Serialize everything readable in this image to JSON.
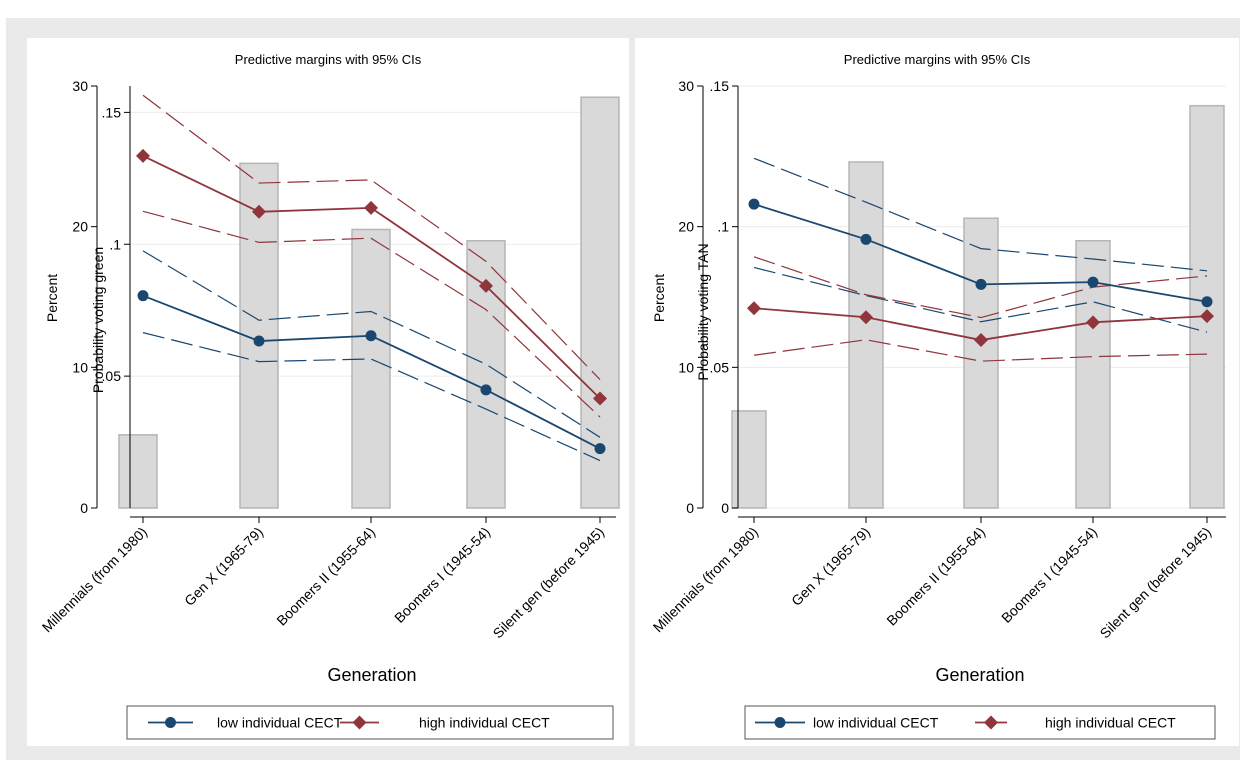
{
  "chart_data": [
    {
      "type": "line",
      "title": "Predictive margins with 95% CIs",
      "xlabel": "Generation",
      "ylabel_left": "Percent",
      "ylabel_right": "Probability voting green",
      "categories": [
        "Millennials (from 1980)",
        "Gen X (1965-79)",
        "Boomers II (1955-64)",
        "Boomers I (1945-54)",
        "Silent gen (before 1945)"
      ],
      "left_axis": {
        "ylim": [
          0,
          30
        ],
        "ticks": [
          0,
          10,
          20,
          30
        ],
        "tick_labels": [
          "0",
          "10",
          "20",
          "30"
        ]
      },
      "right_axis": {
        "ylim": [
          0,
          0.16
        ],
        "ticks": [
          0.05,
          0.1,
          0.15
        ],
        "tick_labels": [
          ".05",
          ".1",
          ".15"
        ]
      },
      "bars": {
        "name": "Percent",
        "values": [
          5.2,
          24.5,
          19.8,
          19.0,
          29.2
        ],
        "color": "#d9d9d9"
      },
      "series": [
        {
          "name": "low individual CECT",
          "values": [
            0.0805,
            0.0633,
            0.0653,
            0.0448,
            0.0225
          ],
          "ci_lower": [
            0.0665,
            0.0555,
            0.0565,
            0.0375,
            0.018
          ],
          "ci_upper": [
            0.0975,
            0.0712,
            0.0745,
            0.0545,
            0.0268
          ],
          "color": "#1a476f",
          "marker": "circle"
        },
        {
          "name": "high individual CECT",
          "values": [
            0.1335,
            0.1123,
            0.1138,
            0.0842,
            0.0415
          ],
          "ci_lower": [
            0.1125,
            0.1007,
            0.1023,
            0.0752,
            0.0345
          ],
          "ci_upper": [
            0.1565,
            0.1232,
            0.1244,
            0.0935,
            0.0487
          ],
          "color": "#90353b",
          "marker": "diamond"
        }
      ],
      "legend": {
        "position": "bottom",
        "entries": [
          "low individual CECT",
          "high individual CECT"
        ]
      },
      "grid": true
    },
    {
      "type": "line",
      "title": "Predictive margins with 95% CIs",
      "xlabel": "Generation",
      "ylabel_left": "Percent",
      "ylabel_right": "Probability voting TAN",
      "categories": [
        "Millennials (from 1980)",
        "Gen X (1965-79)",
        "Boomers II (1955-64)",
        "Boomers I (1945-54)",
        "Silent gen (before 1945)"
      ],
      "left_axis": {
        "ylim": [
          0,
          30
        ],
        "ticks": [
          0,
          10,
          20,
          30
        ],
        "tick_labels": [
          "0",
          "10",
          "20",
          "30"
        ]
      },
      "right_axis": {
        "ylim": [
          0,
          0.15
        ],
        "ticks": [
          0,
          0.05,
          0.1,
          0.15
        ],
        "tick_labels": [
          "0",
          ".05",
          ".1",
          ".15"
        ]
      },
      "bars": {
        "name": "Percent",
        "values": [
          6.9,
          24.6,
          20.6,
          19.0,
          28.6
        ],
        "color": "#d9d9d9"
      },
      "series": [
        {
          "name": "low individual CECT",
          "values": [
            0.108,
            0.0955,
            0.0795,
            0.0803,
            0.0733
          ],
          "ci_lower": [
            0.0855,
            0.0755,
            0.0662,
            0.0733,
            0.0625
          ],
          "ci_upper": [
            0.1243,
            0.1087,
            0.0922,
            0.0885,
            0.0843
          ],
          "color": "#1a476f",
          "marker": "circle"
        },
        {
          "name": "high individual CECT",
          "values": [
            0.071,
            0.0678,
            0.0597,
            0.066,
            0.0682
          ],
          "ci_lower": [
            0.0543,
            0.0598,
            0.0522,
            0.0538,
            0.0547
          ],
          "ci_upper": [
            0.0893,
            0.0758,
            0.0677,
            0.0785,
            0.0825
          ],
          "color": "#90353b",
          "marker": "diamond"
        }
      ],
      "legend": {
        "position": "bottom",
        "entries": [
          "low individual CECT",
          "high individual CECT"
        ]
      },
      "grid": true
    }
  ]
}
